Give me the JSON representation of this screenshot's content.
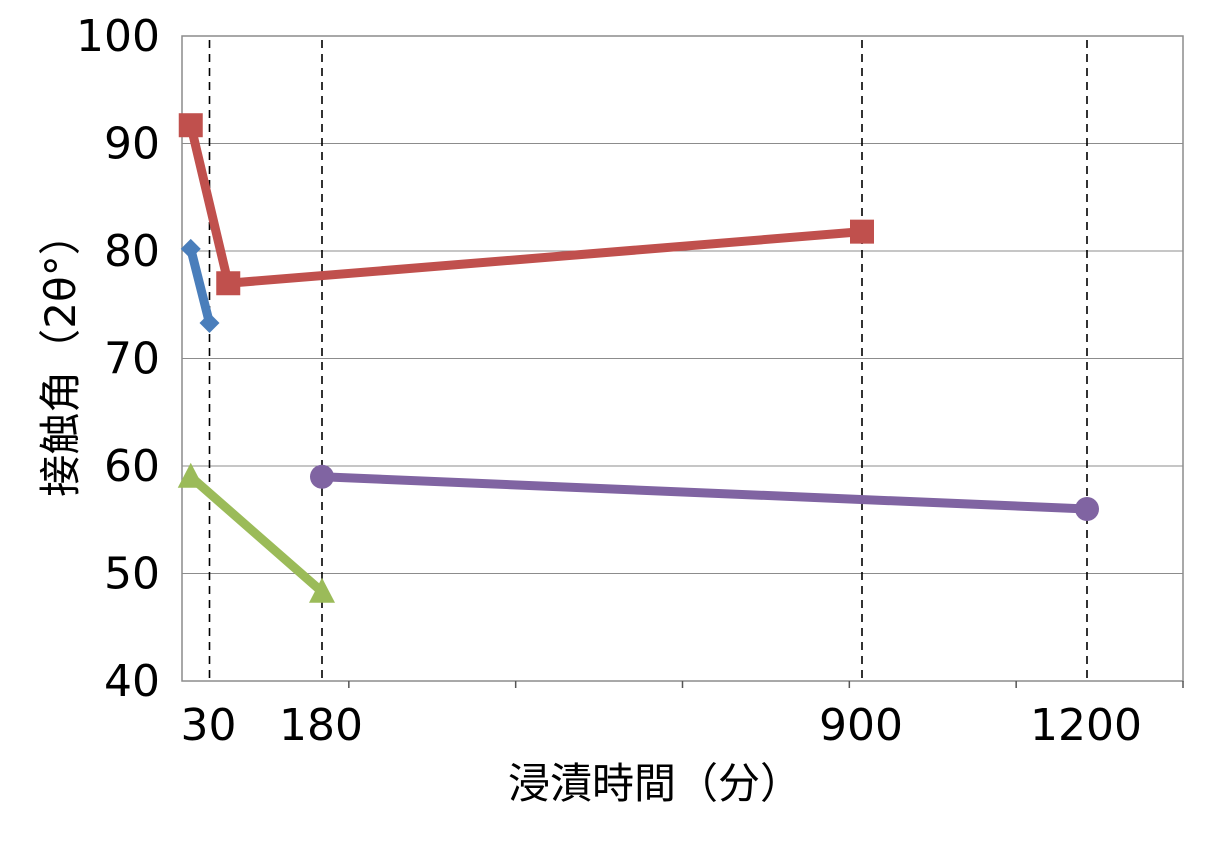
{
  "chart_data": {
    "type": "line",
    "title": "",
    "xlabel": "浸漬時間（分）",
    "ylabel": "接触角（2θ°）",
    "ylim": [
      40,
      100
    ],
    "xlim": [
      0,
      1200
    ],
    "yticks": [
      "40",
      "50",
      "60",
      "70",
      "80",
      "90",
      "100"
    ],
    "xticks": [
      {
        "value": 30,
        "label": "30"
      },
      {
        "value": 180,
        "label": "180"
      },
      {
        "value": 900,
        "label": "900"
      },
      {
        "value": 1200,
        "label": "1200"
      }
    ],
    "vlines": [
      30,
      180,
      900,
      1200
    ],
    "grid": true,
    "legend": "none",
    "series": [
      {
        "color": "#4a7ebb",
        "marker": "diamond",
        "points": [
          [
            5,
            80.2
          ],
          [
            30,
            73.3
          ]
        ]
      },
      {
        "color": "#c0504d",
        "marker": "square",
        "points": [
          [
            5,
            91.7
          ],
          [
            55,
            77.0
          ],
          [
            900,
            81.8
          ]
        ]
      },
      {
        "color": "#9bbb59",
        "marker": "triangle",
        "points": [
          [
            5,
            59.0
          ],
          [
            180,
            48.3
          ]
        ]
      },
      {
        "color": "#8064a2",
        "marker": "circle",
        "points": [
          [
            180,
            59.0
          ],
          [
            1200,
            56.0
          ]
        ]
      }
    ]
  }
}
